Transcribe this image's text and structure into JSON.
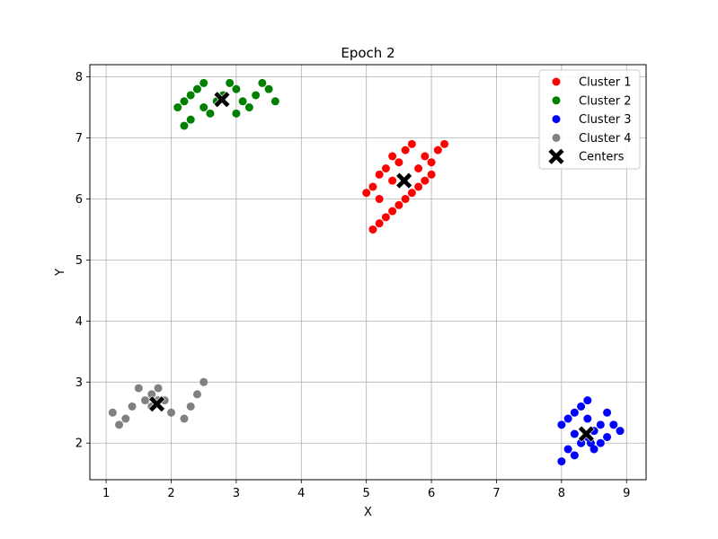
{
  "chart_data": {
    "type": "scatter",
    "title": "Epoch 2",
    "xlabel": "X",
    "ylabel": "Y",
    "xlim": [
      0.75,
      9.3
    ],
    "ylim": [
      1.4,
      8.2
    ],
    "xticks": [
      1,
      2,
      3,
      4,
      5,
      6,
      7,
      8,
      9
    ],
    "yticks": [
      2,
      3,
      4,
      5,
      6,
      7,
      8
    ],
    "grid": true,
    "legend_position": "top-right",
    "series": [
      {
        "name": "Cluster 1",
        "color": "#ff0000",
        "marker": "circle",
        "points": [
          [
            5.0,
            6.1
          ],
          [
            5.1,
            6.2
          ],
          [
            5.1,
            5.5
          ],
          [
            5.2,
            5.6
          ],
          [
            5.2,
            6.4
          ],
          [
            5.2,
            6.0
          ],
          [
            5.3,
            5.7
          ],
          [
            5.3,
            6.5
          ],
          [
            5.4,
            5.8
          ],
          [
            5.4,
            6.3
          ],
          [
            5.4,
            6.7
          ],
          [
            5.5,
            5.9
          ],
          [
            5.5,
            6.6
          ],
          [
            5.6,
            6.0
          ],
          [
            5.6,
            6.8
          ],
          [
            5.7,
            6.1
          ],
          [
            5.7,
            6.9
          ],
          [
            5.8,
            6.2
          ],
          [
            5.8,
            6.5
          ],
          [
            5.9,
            6.3
          ],
          [
            5.9,
            6.7
          ],
          [
            6.0,
            6.4
          ],
          [
            6.0,
            6.6
          ],
          [
            6.1,
            6.8
          ],
          [
            6.2,
            6.9
          ]
        ]
      },
      {
        "name": "Cluster 2",
        "color": "#008000",
        "marker": "circle",
        "points": [
          [
            2.1,
            7.5
          ],
          [
            2.2,
            7.6
          ],
          [
            2.2,
            7.2
          ],
          [
            2.3,
            7.7
          ],
          [
            2.3,
            7.3
          ],
          [
            2.4,
            7.8
          ],
          [
            2.5,
            7.9
          ],
          [
            2.5,
            7.5
          ],
          [
            2.6,
            7.4
          ],
          [
            2.7,
            7.6
          ],
          [
            2.8,
            7.7
          ],
          [
            2.9,
            7.9
          ],
          [
            3.0,
            7.8
          ],
          [
            3.0,
            7.4
          ],
          [
            3.1,
            7.6
          ],
          [
            3.2,
            7.5
          ],
          [
            3.3,
            7.7
          ],
          [
            3.4,
            7.9
          ],
          [
            3.5,
            7.8
          ],
          [
            3.6,
            7.6
          ]
        ]
      },
      {
        "name": "Cluster 3",
        "color": "#0000ff",
        "marker": "circle",
        "points": [
          [
            8.0,
            1.7
          ],
          [
            8.0,
            2.3
          ],
          [
            8.1,
            1.9
          ],
          [
            8.1,
            2.4
          ],
          [
            8.2,
            1.8
          ],
          [
            8.2,
            2.5
          ],
          [
            8.3,
            2.0
          ],
          [
            8.3,
            2.6
          ],
          [
            8.4,
            2.1
          ],
          [
            8.4,
            2.4
          ],
          [
            8.4,
            2.7
          ],
          [
            8.5,
            1.9
          ],
          [
            8.5,
            2.2
          ],
          [
            8.6,
            2.0
          ],
          [
            8.6,
            2.3
          ],
          [
            8.7,
            2.1
          ],
          [
            8.7,
            2.5
          ],
          [
            8.8,
            2.3
          ],
          [
            8.9,
            2.2
          ],
          [
            8.3,
            2.0
          ],
          [
            8.45,
            2.0
          ],
          [
            8.2,
            2.15
          ]
        ]
      },
      {
        "name": "Cluster 4",
        "color": "#808080",
        "marker": "circle",
        "points": [
          [
            1.1,
            2.5
          ],
          [
            1.2,
            2.3
          ],
          [
            1.3,
            2.4
          ],
          [
            1.4,
            2.6
          ],
          [
            1.5,
            2.9
          ],
          [
            1.6,
            2.7
          ],
          [
            1.7,
            2.8
          ],
          [
            1.7,
            2.6
          ],
          [
            1.8,
            2.9
          ],
          [
            1.8,
            2.7
          ],
          [
            1.9,
            2.7
          ],
          [
            2.0,
            2.5
          ],
          [
            2.2,
            2.4
          ],
          [
            2.3,
            2.6
          ],
          [
            2.4,
            2.8
          ],
          [
            2.5,
            3.0
          ]
        ]
      }
    ],
    "centers": {
      "name": "Centers",
      "color": "#000000",
      "marker": "X",
      "points": [
        [
          5.58,
          6.3
        ],
        [
          2.78,
          7.63
        ],
        [
          8.38,
          2.15
        ],
        [
          1.78,
          2.64
        ]
      ]
    }
  }
}
